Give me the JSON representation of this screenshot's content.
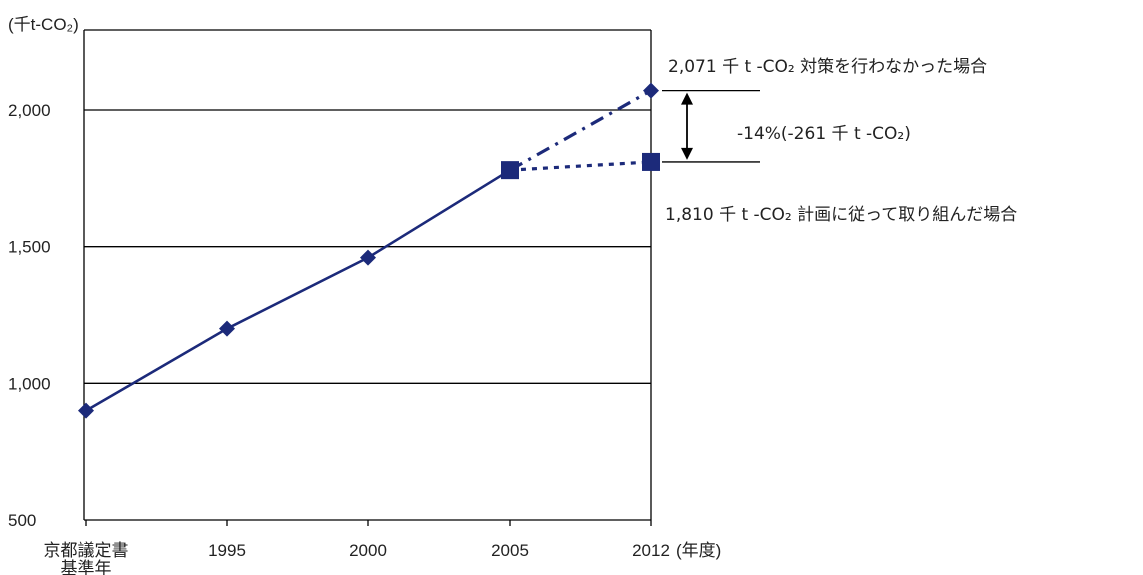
{
  "chart_data": {
    "type": "line",
    "y_unit_label": "(千t-CO₂)",
    "x_unit_label": "(年度)",
    "categories": [
      "京都議定書基準年",
      "1995",
      "2000",
      "2005",
      "2012"
    ],
    "x_tick_labels": [
      [
        "京都議定書",
        "基準年"
      ],
      [
        "1995"
      ],
      [
        "2000"
      ],
      [
        "2005"
      ],
      [
        "2012"
      ]
    ],
    "ylim": [
      500,
      2150
    ],
    "y_ticks": [
      500,
      1000,
      1500,
      2000
    ],
    "y_tick_labels": [
      "500",
      "1,000",
      "1,500",
      "2,000"
    ],
    "grid": "horizontal",
    "series": [
      {
        "name": "",
        "style": "solid",
        "marker": "diamond",
        "points": [
          [
            "京都議定書基準年",
            900
          ],
          [
            "1995",
            1200
          ],
          [
            "2000",
            1460
          ],
          [
            "2005",
            1780
          ]
        ]
      },
      {
        "name": "",
        "style": "dash-dot",
        "marker": "diamond",
        "points": [
          [
            "2005",
            1780
          ],
          [
            "2012",
            2071
          ]
        ]
      },
      {
        "name": "",
        "style": "dotted",
        "marker": "square",
        "points": [
          [
            "2005",
            1780
          ],
          [
            "2012",
            1810
          ]
        ]
      }
    ],
    "annotations": {
      "upper": "2,071 千 t -CO₂  対策を行わなかった場合",
      "diff": "-14%(-261 千 t -CO₂)",
      "lower": "1,810 千 t -CO₂  計画に従って取り組んだ場合"
    },
    "colors": {
      "series": "#1c2a7a",
      "grid": "#000000"
    }
  }
}
